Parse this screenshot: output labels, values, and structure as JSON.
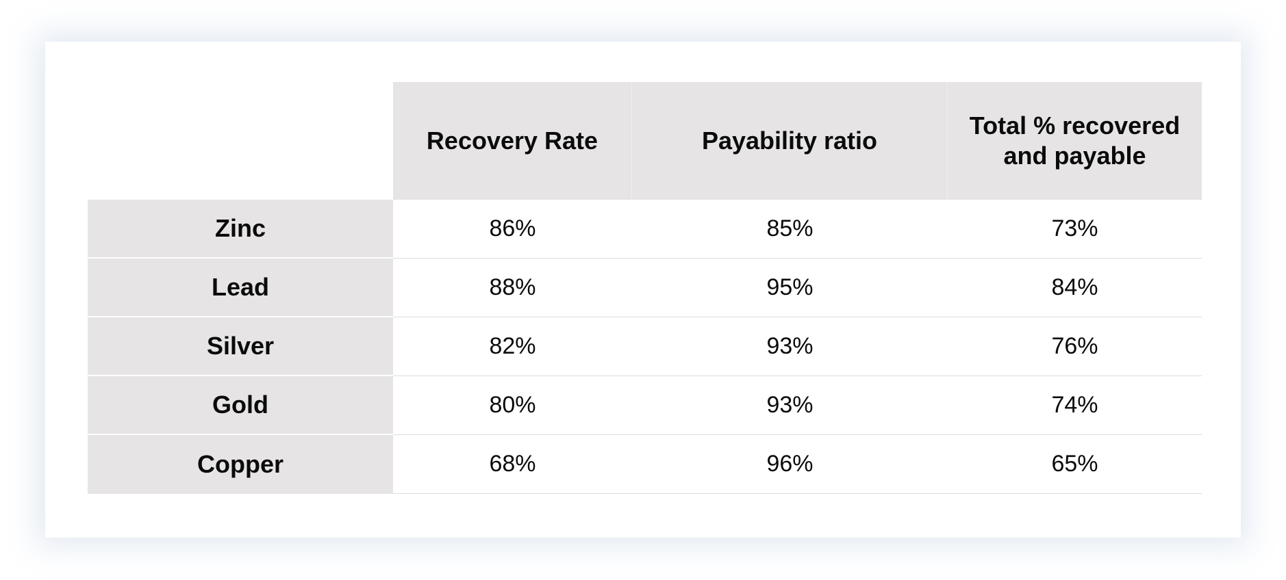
{
  "table": {
    "columns": [
      "Recovery Rate",
      "Payability ratio",
      "Total % recovered and payable"
    ],
    "rows": [
      {
        "metal": "Zinc",
        "values": [
          "86%",
          "85%",
          "73%"
        ]
      },
      {
        "metal": "Lead",
        "values": [
          "88%",
          "95%",
          "84%"
        ]
      },
      {
        "metal": "Silver",
        "values": [
          "82%",
          "93%",
          "76%"
        ]
      },
      {
        "metal": "Gold",
        "values": [
          "80%",
          "93%",
          "74%"
        ]
      },
      {
        "metal": "Copper",
        "values": [
          "68%",
          "96%",
          "65%"
        ]
      }
    ]
  },
  "colors": {
    "header_bg": "#e6e4e5",
    "text": "#0b0b0b",
    "row_divider": "#dcdcdc",
    "shadow": "#c6d2e4"
  }
}
